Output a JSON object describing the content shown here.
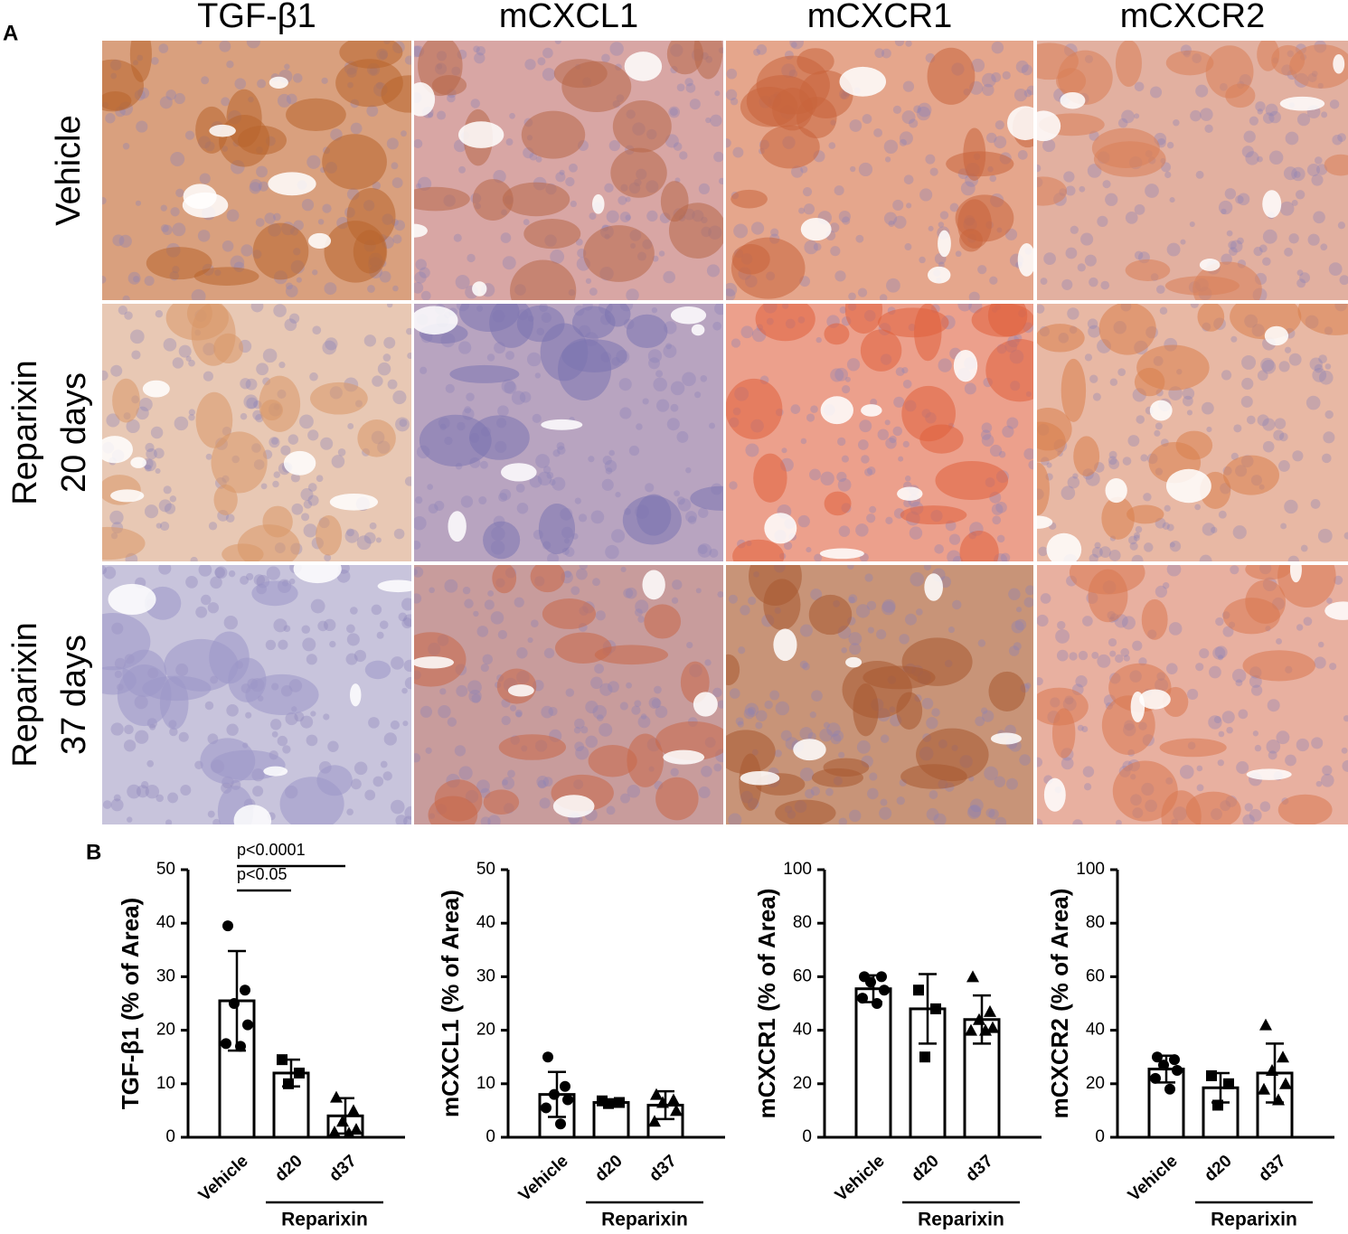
{
  "panel_labels": [
    "A",
    "B"
  ],
  "panel_a": {
    "columns": [
      "TGF-β1",
      "mCXCL1",
      "mCXCR1",
      "mCXCR2"
    ],
    "rows": [
      [
        "Vehicle"
      ],
      [
        "Reparixin",
        "20 days"
      ],
      [
        "Reparixin",
        "37 days"
      ]
    ]
  },
  "chart_data": [
    {
      "type": "bar",
      "ylabel": "TGF-β1 (% of Area)",
      "categories": [
        "Vehicle",
        "d20",
        "d37"
      ],
      "group_label": "Reparixin",
      "values": [
        25.5,
        12,
        4
      ],
      "errors": [
        9.3,
        2.5,
        3.3
      ],
      "points": [
        [
          39.5,
          27.5,
          25,
          21,
          17.5,
          17
        ],
        [
          14.5,
          12,
          10
        ],
        [
          7.5,
          5,
          3,
          1.5,
          1,
          0.8
        ]
      ],
      "markers": [
        "circle",
        "square",
        "triangle"
      ],
      "color": "#000000",
      "ylim": [
        0,
        50
      ],
      "yticks": [
        0,
        10,
        20,
        30,
        40,
        50
      ],
      "annotations": [
        {
          "text": "p<0.0001",
          "from": 0,
          "to": 2
        },
        {
          "text": "p<0.05",
          "from": 0,
          "to": 1
        }
      ]
    },
    {
      "type": "bar",
      "ylabel": "mCXCL1 (% of Area)",
      "categories": [
        "Vehicle",
        "d20",
        "d37"
      ],
      "group_label": "Reparixin",
      "values": [
        8,
        6.5,
        6
      ],
      "errors": [
        4.2,
        0.3,
        2.6
      ],
      "points": [
        [
          15,
          9.5,
          8,
          7,
          5.5,
          2.5
        ],
        [
          6.8,
          6.5,
          6.3
        ],
        [
          8,
          7,
          6.5,
          5,
          3
        ]
      ],
      "markers": [
        "circle",
        "square",
        "triangle"
      ],
      "color": "#000000",
      "ylim": [
        0,
        50
      ],
      "yticks": [
        0,
        10,
        20,
        30,
        40,
        50
      ]
    },
    {
      "type": "bar",
      "ylabel": "mCXCR1 (% of Area)",
      "categories": [
        "Vehicle",
        "d20",
        "d37"
      ],
      "group_label": "Reparixin",
      "values": [
        55.5,
        48,
        44
      ],
      "errors": [
        5,
        13,
        9
      ],
      "points": [
        [
          60,
          60,
          58,
          55,
          52,
          50
        ],
        [
          55,
          48,
          30
        ],
        [
          60,
          47,
          44,
          41,
          40,
          40
        ]
      ],
      "markers": [
        "circle",
        "square",
        "triangle"
      ],
      "color": "#000000",
      "ylim": [
        0,
        100
      ],
      "yticks": [
        0,
        20,
        40,
        60,
        80,
        100
      ]
    },
    {
      "type": "bar",
      "ylabel": "mCXCR2 (% of Area)",
      "categories": [
        "Vehicle",
        "d20",
        "d37"
      ],
      "group_label": "Reparixin",
      "values": [
        25.5,
        18.5,
        24
      ],
      "errors": [
        5,
        5.5,
        11
      ],
      "points": [
        [
          30,
          29,
          27,
          25,
          22,
          18
        ],
        [
          23,
          20,
          12
        ],
        [
          42,
          30,
          25,
          20,
          18,
          14
        ]
      ],
      "markers": [
        "circle",
        "square",
        "triangle"
      ],
      "color": "#000000",
      "ylim": [
        0,
        100
      ],
      "yticks": [
        0,
        20,
        40,
        60,
        80,
        100
      ]
    }
  ]
}
